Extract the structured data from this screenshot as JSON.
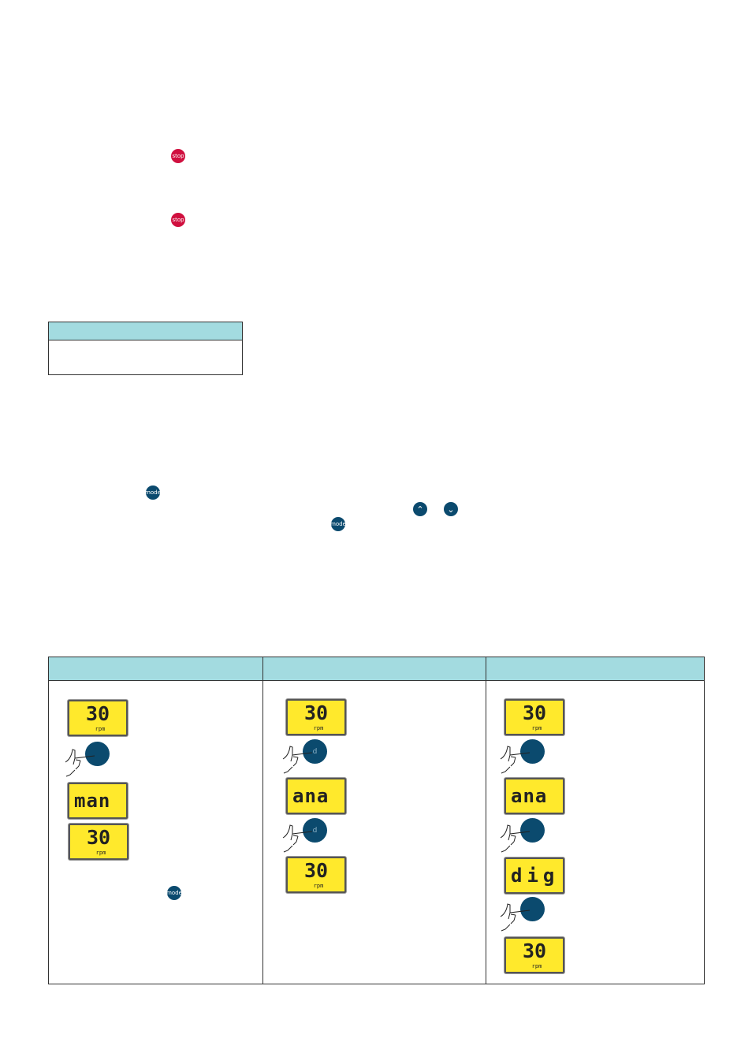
{
  "buttons": {
    "stop": "stop",
    "mode": "mode",
    "up": "up-arrow-icon",
    "down": "down-arrow-icon",
    "d": "d"
  },
  "displays": {
    "col1": [
      {
        "value": "30",
        "unit": "rpm"
      },
      {
        "value": "man"
      },
      {
        "value": "30",
        "unit": "rpm"
      }
    ],
    "col2": [
      {
        "value": "30",
        "unit": "rpm"
      },
      {
        "value": "ana"
      },
      {
        "value": "30",
        "unit": "rpm"
      }
    ],
    "col3": [
      {
        "value": "30",
        "unit": "rpm"
      },
      {
        "value": "ana"
      },
      {
        "value": "dig"
      },
      {
        "value": "30",
        "unit": "rpm"
      }
    ]
  },
  "colors": {
    "header": "#a3dbe0",
    "lcd": "#ffe92c",
    "button": "#0b4a6e",
    "stop": "#d0103f"
  }
}
